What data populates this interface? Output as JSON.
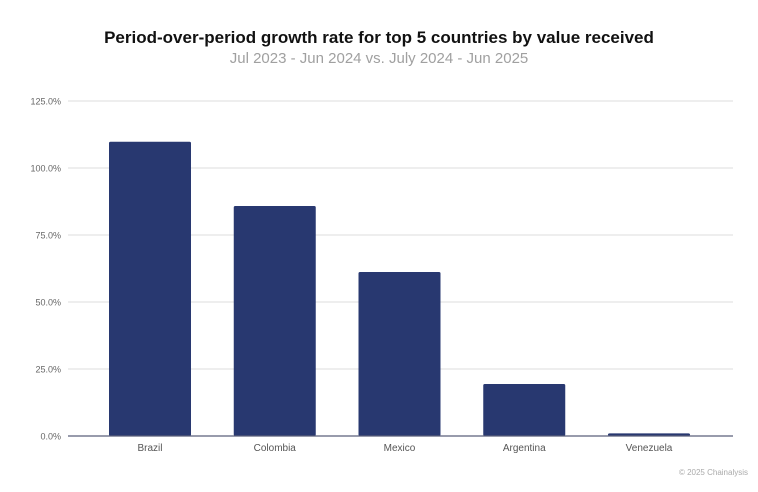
{
  "chart_data": {
    "type": "bar",
    "title": "Period-over-period growth rate for top 5 countries by value received",
    "subtitle": "Jul 2023 - Jun 2024 vs. July 2024 - Jun 2025",
    "categories": [
      "Brazil",
      "Colombia",
      "Mexico",
      "Argentina",
      "Venezuela"
    ],
    "values": [
      109.8,
      85.8,
      61.2,
      19.4,
      1.0
    ],
    "unit": "%",
    "xlabel": "",
    "ylabel": "",
    "ylim": [
      0,
      125
    ],
    "yticks": [
      0,
      25,
      50,
      75,
      100,
      125
    ],
    "ytick_labels": [
      "0.0%",
      "25.0%",
      "50.0%",
      "75.0%",
      "100.0%",
      "125.0%"
    ],
    "grid": true,
    "bar_color": "#283870"
  },
  "credit": "© 2025 Chainalysis"
}
